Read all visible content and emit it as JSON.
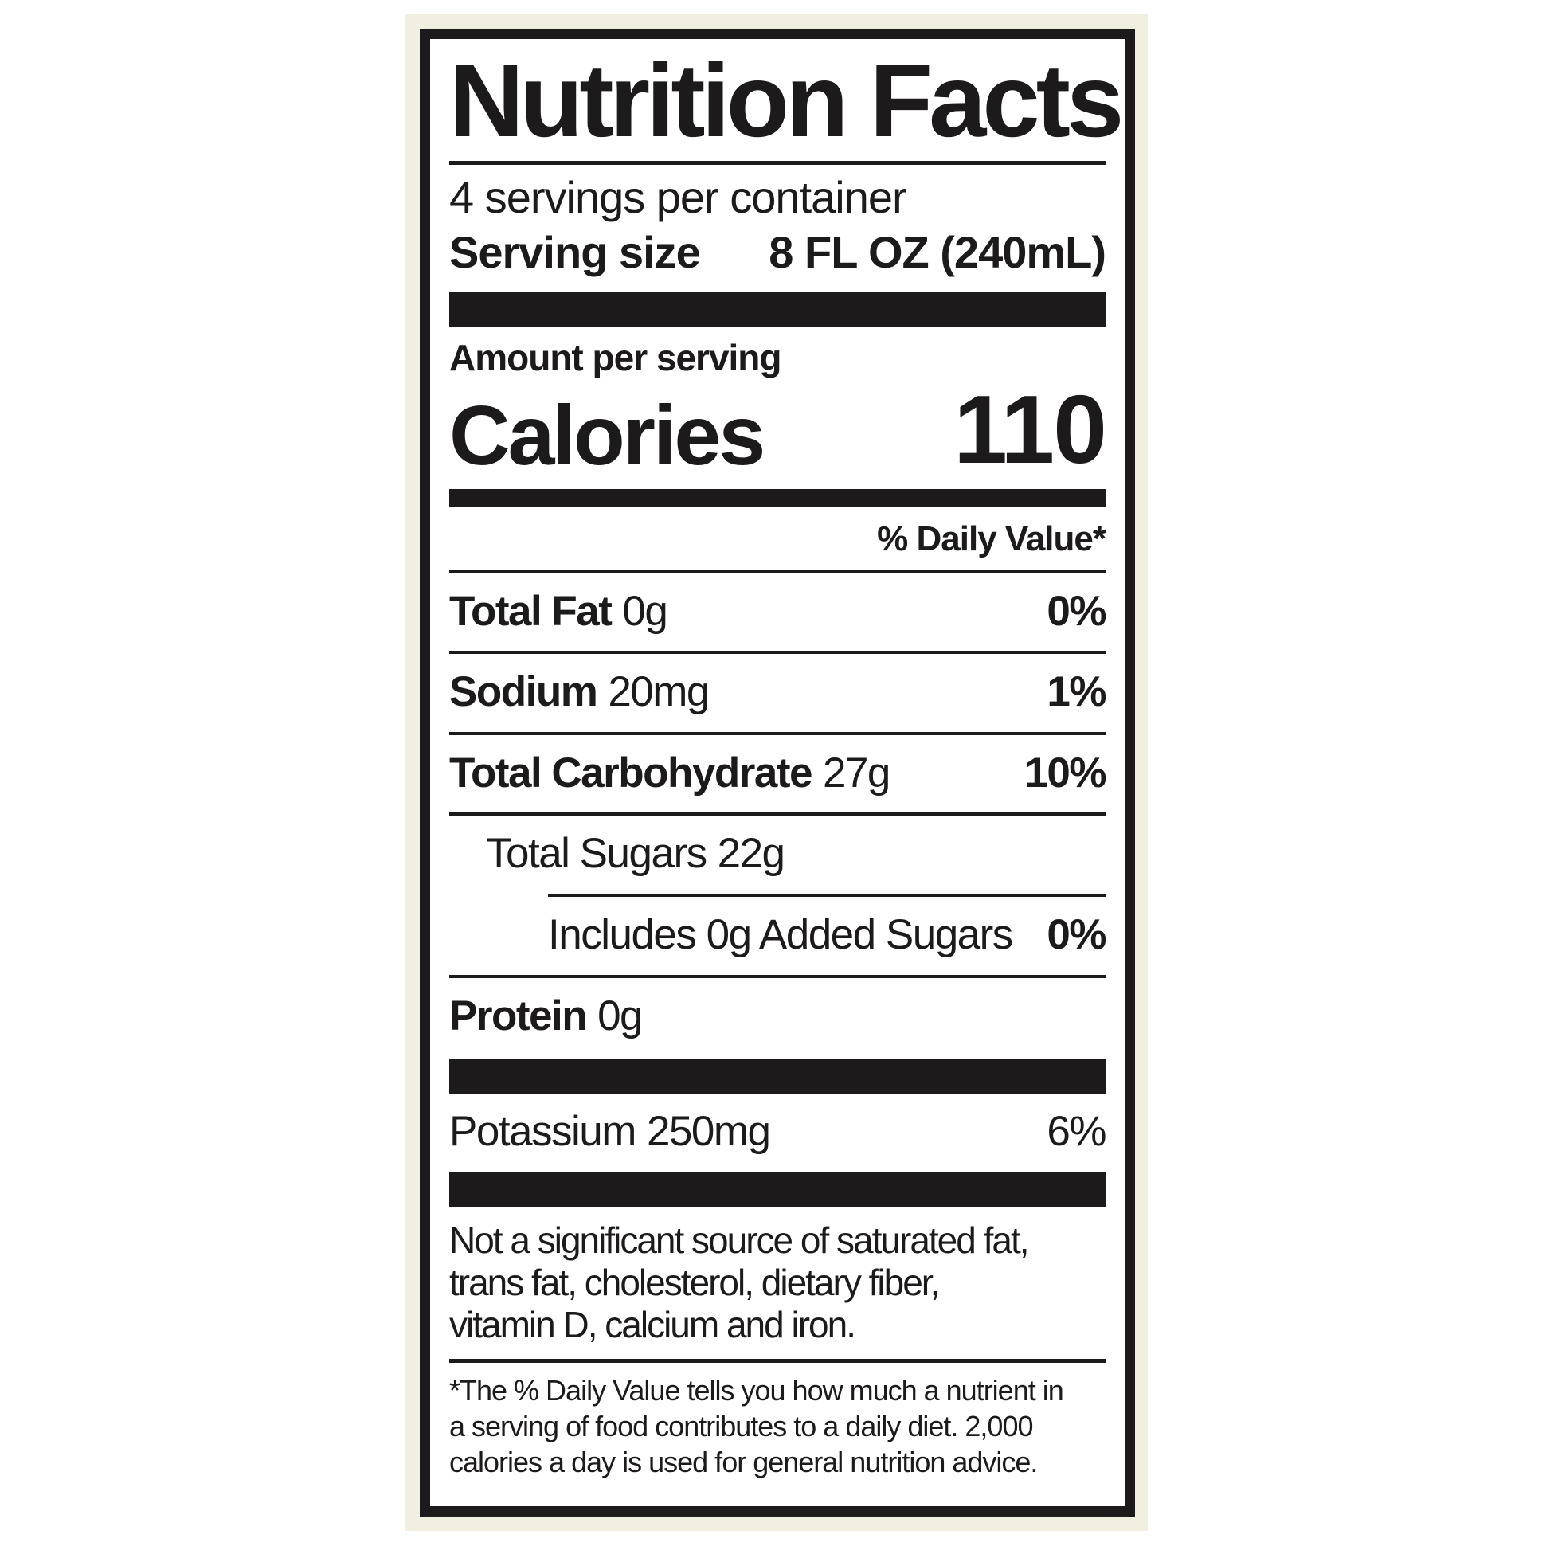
{
  "colors": {
    "page_background": "#ffffff",
    "label_halo": "#f1f0e0",
    "label_background": "#ffffff",
    "ink": "#1d1a1b"
  },
  "label": {
    "title": "Nutrition Facts",
    "servings_per_container": "4 servings per container",
    "serving_size": {
      "label": "Serving size",
      "value": "8 FL OZ (240mL)"
    },
    "amount_per_serving": "Amount per serving",
    "calories": {
      "label": "Calories",
      "value": "110"
    },
    "daily_value_header": "% Daily Value*",
    "rows": [
      {
        "name": "Total Fat",
        "amount": "0g",
        "daily_value": "0%"
      },
      {
        "name": "Sodium",
        "amount": "20mg",
        "daily_value": "1%"
      },
      {
        "name": "Total Carbohydrate",
        "amount": "27g",
        "daily_value": "10%"
      },
      {
        "name": "Total Sugars",
        "amount": "22g",
        "daily_value": ""
      },
      {
        "name": "Includes 0g Added Sugars",
        "amount": "",
        "daily_value": "0%"
      },
      {
        "name": "Protein",
        "amount": "0g",
        "daily_value": ""
      }
    ],
    "potassium": {
      "name": "Potassium",
      "amount": "250mg",
      "daily_value": "6%"
    },
    "not_significant_lines": [
      "Not a significant source of saturated fat,",
      "trans fat, cholesterol, dietary fiber,",
      "vitamin D, calcium and iron."
    ],
    "footnote_lines": [
      "*The % Daily Value tells you how much a nutrient in",
      "a serving of food contributes to a daily diet. 2,000",
      "calories a day is used for general nutrition advice."
    ]
  }
}
